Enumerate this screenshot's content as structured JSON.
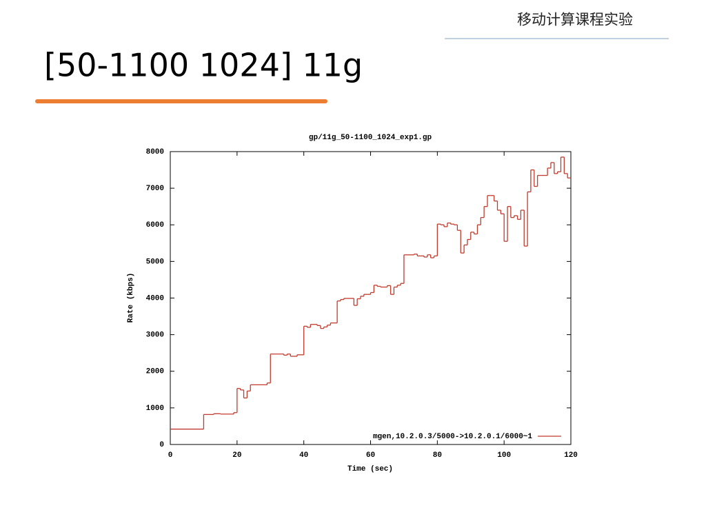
{
  "slide": {
    "header": "移动计算课程实验",
    "title": "[50-1100 1024] 11g"
  },
  "chart_data": {
    "type": "line",
    "drawstyle": "steps-post",
    "title": "gp/11g_50-1100_1024_exp1.gp",
    "x_label": "Time (sec)",
    "y_label": "Rate (kbps)",
    "xlim": [
      0,
      120
    ],
    "xticks": [
      0,
      20,
      40,
      60,
      80,
      100,
      120
    ],
    "ylim": [
      0,
      8000
    ],
    "yticks": [
      0,
      1000,
      2000,
      3000,
      4000,
      5000,
      6000,
      7000,
      8000
    ],
    "legend": "lower right",
    "series": [
      {
        "name": "mgen,10.2.0.3/5000->10.2.0.1/6000~1",
        "color": "#c0392b",
        "x": [
          0,
          10,
          13,
          15,
          19,
          20,
          21,
          22,
          23,
          24,
          29,
          30,
          34,
          35,
          36,
          38,
          40,
          41,
          42,
          44,
          45,
          46,
          47,
          48,
          50,
          51,
          52,
          55,
          56,
          57,
          58,
          60,
          61,
          62,
          63,
          65,
          66,
          67,
          68,
          69,
          70,
          73,
          74,
          76,
          77,
          78,
          79,
          80,
          81,
          82,
          83,
          84,
          85,
          86,
          87,
          88,
          89,
          90,
          91,
          92,
          93,
          94,
          95,
          96,
          97,
          98,
          99,
          100,
          101,
          102,
          103,
          104,
          105,
          106,
          107,
          108,
          109,
          110,
          111,
          113,
          114,
          115,
          116,
          117,
          118,
          119
        ],
        "values": [
          420,
          820,
          840,
          830,
          870,
          1530,
          1490,
          1270,
          1460,
          1630,
          1680,
          2470,
          2440,
          2470,
          2410,
          2450,
          3230,
          3200,
          3280,
          3250,
          3170,
          3210,
          3260,
          3320,
          3920,
          3960,
          3990,
          3800,
          3980,
          4050,
          4100,
          4150,
          4350,
          4320,
          4300,
          4340,
          4100,
          4300,
          4350,
          4400,
          5180,
          5200,
          5150,
          5120,
          5180,
          5100,
          5150,
          6020,
          6000,
          5950,
          6050,
          6020,
          6000,
          5850,
          5230,
          5450,
          5600,
          5800,
          5750,
          6000,
          6200,
          6500,
          6800,
          6800,
          6650,
          6400,
          6300,
          5550,
          6500,
          6200,
          6250,
          6150,
          6400,
          5420,
          6900,
          7500,
          7050,
          7350,
          7350,
          7550,
          7700,
          7400,
          7450,
          7850,
          7400,
          7280
        ]
      }
    ]
  }
}
